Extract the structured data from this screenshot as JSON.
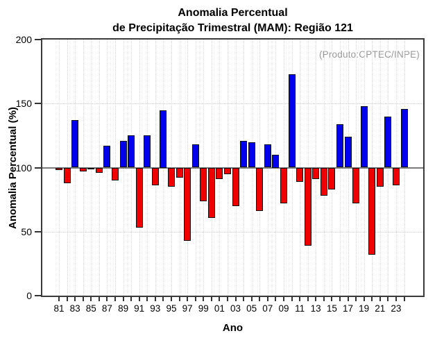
{
  "title": {
    "line1": "Anomalia Percentual",
    "line2": "de Precipitação Trimestral (MAM): Região 121"
  },
  "annotation": "(Produto:CPTEC/INPE)",
  "chart_data": {
    "type": "bar",
    "title": "Anomalia Percentual de Precipitação Trimestral (MAM): Região 121",
    "xlabel": "Ano",
    "ylabel": "Anomalia Percentual (%)",
    "ylim": [
      0,
      200
    ],
    "yticks": [
      0,
      50,
      100,
      150,
      200
    ],
    "grid_yticks": [
      50,
      150
    ],
    "baseline": 100,
    "grid": "dotted, vertical line at every year, horizontal at 50 and 150",
    "categories": [
      "81",
      "82",
      "83",
      "84",
      "85",
      "86",
      "87",
      "88",
      "89",
      "90",
      "91",
      "92",
      "93",
      "94",
      "95",
      "96",
      "97",
      "98",
      "99",
      "00",
      "01",
      "02",
      "03",
      "04",
      "05",
      "06",
      "07",
      "08",
      "09",
      "10",
      "11",
      "12",
      "13",
      "14",
      "15",
      "16",
      "17",
      "18",
      "19",
      "20",
      "21",
      "22",
      "23",
      "24"
    ],
    "values": [
      98,
      88,
      137,
      97,
      99,
      96,
      117,
      90,
      121,
      125,
      53,
      125,
      86,
      145,
      85,
      92,
      43,
      118,
      74,
      61,
      91,
      95,
      70,
      121,
      120,
      66,
      118,
      110,
      72,
      173,
      89,
      39,
      91,
      78,
      83,
      134,
      124,
      72,
      148,
      32,
      85,
      140,
      86,
      146
    ],
    "x_tick_labels": [
      "81",
      "83",
      "85",
      "87",
      "89",
      "91",
      "93",
      "95",
      "97",
      "99",
      "01",
      "03",
      "05",
      "07",
      "09",
      "11",
      "13",
      "15",
      "17",
      "19",
      "21",
      "23"
    ],
    "colors": {
      "above_baseline": "#0000ee",
      "below_baseline": "#ee0000",
      "bar_border": "#101010",
      "annotation_text": "#999999",
      "baseline_line": "#7a7a7a",
      "frame": "#3a3a3a",
      "grid": "#dcdcdc"
    }
  }
}
